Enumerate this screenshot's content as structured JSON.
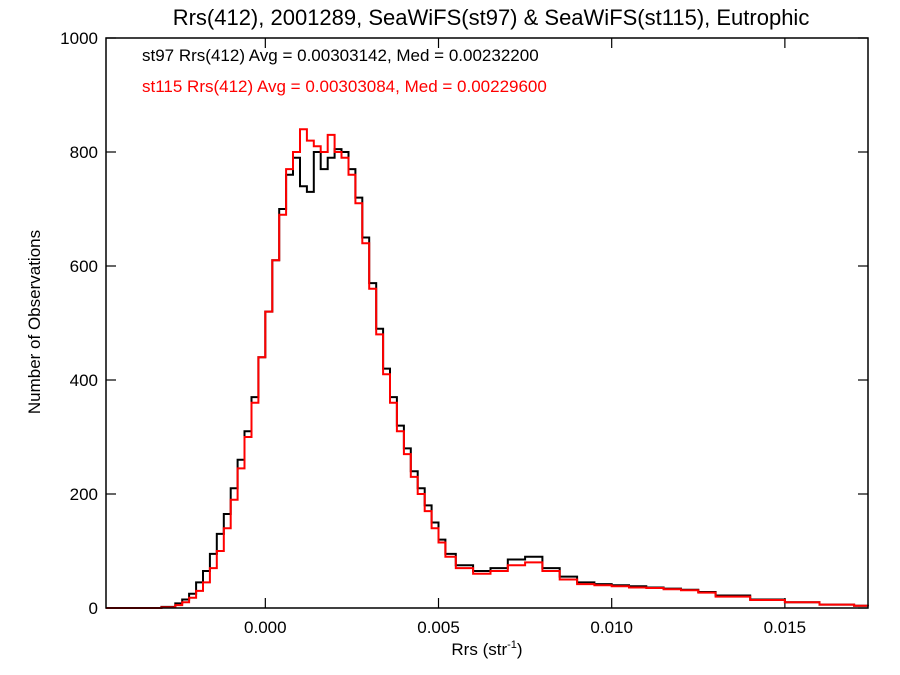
{
  "chart_data": {
    "type": "line",
    "title": "Rrs(412), 2001289, SeaWiFS(st97) & SeaWiFS(st115), Eutrophic",
    "xlabel": "Rrs (str",
    "xlabel_sup": "-1",
    "xlabel_end": ")",
    "ylabel": "Number of Observations",
    "xlim": [
      -0.0046,
      0.0174
    ],
    "ylim": [
      0,
      1000
    ],
    "x_ticks": [
      {
        "value": 0.0,
        "label": "0.000"
      },
      {
        "value": 0.005,
        "label": "0.005"
      },
      {
        "value": 0.01,
        "label": "0.010"
      },
      {
        "value": 0.015,
        "label": "0.015"
      }
    ],
    "y_ticks": [
      {
        "value": 0,
        "label": "0"
      },
      {
        "value": 200,
        "label": "200"
      },
      {
        "value": 400,
        "label": "400"
      },
      {
        "value": 600,
        "label": "600"
      },
      {
        "value": 800,
        "label": "800"
      },
      {
        "value": 1000,
        "label": "1000"
      }
    ],
    "legend_location": "top-left",
    "series": [
      {
        "name": "st97",
        "legend": "st97 Rrs(412) Avg = 0.00303142, Med = 0.00232200",
        "color": "#000000",
        "step": "stairs",
        "x": [
          -0.0046,
          -0.003,
          -0.0026,
          -0.0024,
          -0.0022,
          -0.002,
          -0.0018,
          -0.0016,
          -0.0014,
          -0.0012,
          -0.001,
          -0.0008,
          -0.0006,
          -0.0004,
          -0.0002,
          0.0,
          0.0002,
          0.0004,
          0.0006,
          0.0008,
          0.001,
          0.0012,
          0.0014,
          0.0016,
          0.0018,
          0.002,
          0.0022,
          0.0024,
          0.0026,
          0.0028,
          0.003,
          0.0032,
          0.0034,
          0.0036,
          0.0038,
          0.004,
          0.0042,
          0.0044,
          0.0046,
          0.0048,
          0.005,
          0.0052,
          0.0055,
          0.006,
          0.0065,
          0.007,
          0.0075,
          0.008,
          0.0085,
          0.009,
          0.0095,
          0.01,
          0.0105,
          0.011,
          0.0115,
          0.012,
          0.0125,
          0.013,
          0.014,
          0.015,
          0.016,
          0.017,
          0.0174
        ],
        "y": [
          0,
          2,
          8,
          15,
          25,
          45,
          65,
          95,
          130,
          165,
          210,
          260,
          310,
          370,
          440,
          520,
          610,
          700,
          760,
          790,
          740,
          730,
          800,
          770,
          790,
          805,
          800,
          770,
          720,
          650,
          570,
          490,
          420,
          370,
          320,
          280,
          240,
          210,
          180,
          150,
          120,
          95,
          75,
          65,
          70,
          85,
          90,
          70,
          55,
          45,
          42,
          40,
          38,
          36,
          34,
          32,
          28,
          22,
          15,
          10,
          6,
          4,
          4
        ]
      },
      {
        "name": "st115",
        "legend": "st115 Rrs(412) Avg = 0.00303084, Med = 0.00229600",
        "color": "#ff0000",
        "step": "stairs",
        "x": [
          -0.0046,
          -0.003,
          -0.0026,
          -0.0024,
          -0.0022,
          -0.002,
          -0.0018,
          -0.0016,
          -0.0014,
          -0.0012,
          -0.001,
          -0.0008,
          -0.0006,
          -0.0004,
          -0.0002,
          0.0,
          0.0002,
          0.0004,
          0.0006,
          0.0008,
          0.001,
          0.0012,
          0.0014,
          0.0016,
          0.0018,
          0.002,
          0.0022,
          0.0024,
          0.0026,
          0.0028,
          0.003,
          0.0032,
          0.0034,
          0.0036,
          0.0038,
          0.004,
          0.0042,
          0.0044,
          0.0046,
          0.0048,
          0.005,
          0.0052,
          0.0055,
          0.006,
          0.0065,
          0.007,
          0.0075,
          0.008,
          0.0085,
          0.009,
          0.0095,
          0.01,
          0.0105,
          0.011,
          0.0115,
          0.012,
          0.0125,
          0.013,
          0.014,
          0.015,
          0.016,
          0.017,
          0.0174
        ],
        "y": [
          0,
          1,
          5,
          10,
          18,
          30,
          45,
          70,
          100,
          140,
          190,
          245,
          300,
          360,
          440,
          520,
          610,
          690,
          770,
          800,
          840,
          820,
          810,
          800,
          830,
          800,
          790,
          760,
          710,
          640,
          560,
          480,
          410,
          360,
          310,
          270,
          230,
          200,
          170,
          140,
          115,
          90,
          70,
          60,
          65,
          75,
          80,
          65,
          50,
          42,
          40,
          38,
          36,
          35,
          33,
          31,
          27,
          20,
          14,
          10,
          6,
          4,
          3
        ]
      }
    ]
  }
}
